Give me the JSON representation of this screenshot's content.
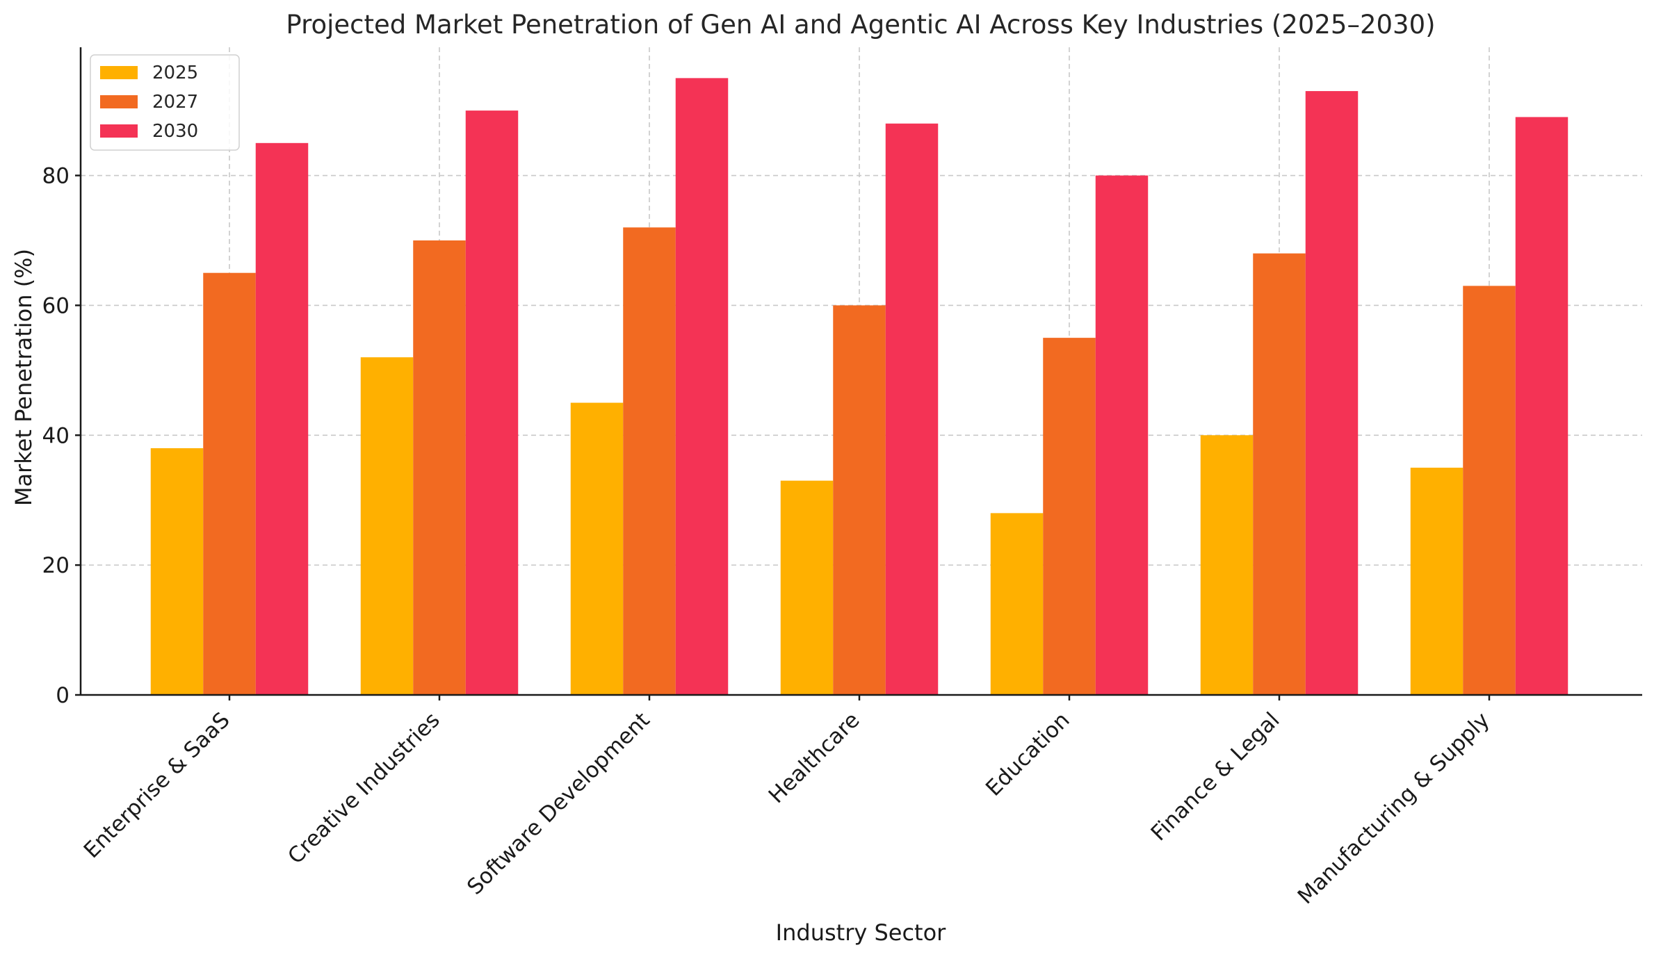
{
  "chart_data": {
    "type": "bar",
    "title": "Projected Market Penetration of Gen AI and Agentic AI Across Key Industries (2025–2030)",
    "xlabel": "Industry Sector",
    "ylabel": "Market Penetration (%)",
    "categories": [
      "Enterprise & SaaS",
      "Creative Industries",
      "Software Development",
      "Healthcare",
      "Education",
      "Finance & Legal",
      "Manufacturing & Supply"
    ],
    "series": [
      {
        "name": "2025",
        "color": "#FFB000",
        "values": [
          38,
          52,
          45,
          33,
          28,
          40,
          35
        ]
      },
      {
        "name": "2027",
        "color": "#F26A21",
        "values": [
          65,
          70,
          72,
          60,
          55,
          68,
          63
        ]
      },
      {
        "name": "2030",
        "color": "#F43355",
        "values": [
          85,
          90,
          95,
          88,
          80,
          93,
          89
        ]
      }
    ],
    "ylim": [
      0,
      99.75
    ],
    "yticks": [
      0,
      20,
      40,
      60,
      80
    ],
    "grid": true,
    "legend_position": "top-left"
  }
}
